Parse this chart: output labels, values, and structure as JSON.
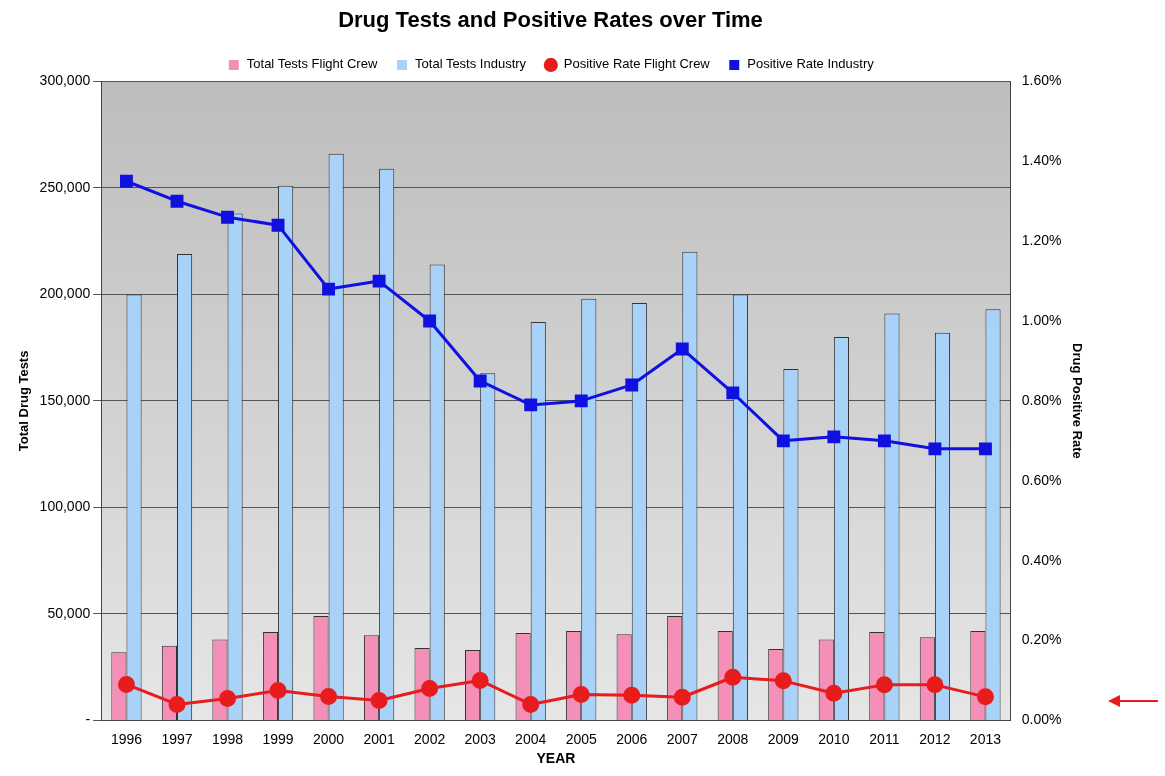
{
  "chart_data": {
    "type": "bar",
    "title": "Drug Tests and Positive Rates over Time",
    "xlabel": "YEAR",
    "ylabel": "Total Drug Tests",
    "y2label": "Drug Positive Rate",
    "categories": [
      "1996",
      "1997",
      "1998",
      "1999",
      "2000",
      "2001",
      "2002",
      "2003",
      "2004",
      "2005",
      "2006",
      "2007",
      "2008",
      "2009",
      "2010",
      "2011",
      "2012",
      "2013"
    ],
    "series": [
      {
        "name": "Total Tests Flight Crew",
        "color": "#f48fb8",
        "values": [
          32000,
          35000,
          38000,
          41500,
          49000,
          40000,
          34000,
          33000,
          41000,
          42000,
          40500,
          49000,
          42000,
          33500,
          38000,
          41500,
          39000,
          42000
        ]
      },
      {
        "name": "Total Tests Industry",
        "color": "#a8d2f8",
        "values": [
          200000,
          219000,
          238000,
          251000,
          266000,
          259000,
          214000,
          163000,
          187000,
          198000,
          196000,
          220000,
          200000,
          165000,
          180000,
          191000,
          182000,
          193000
        ]
      },
      {
        "name": "Positive Rate Flight Crew",
        "type": "line",
        "axis": "y2",
        "marker": "circle",
        "color": "#e81c1c",
        "values": [
          0.09,
          0.04,
          0.055,
          0.075,
          0.06,
          0.05,
          0.08,
          0.1,
          0.04,
          0.065,
          0.063,
          0.058,
          0.108,
          0.099,
          0.068,
          0.089,
          0.089,
          0.059
        ]
      },
      {
        "name": "Positive Rate Industry",
        "type": "line",
        "axis": "y2",
        "marker": "square",
        "color": "#1010e0",
        "values": [
          1.35,
          1.3,
          1.26,
          1.24,
          1.08,
          1.1,
          1.0,
          0.85,
          0.79,
          0.8,
          0.84,
          0.93,
          0.82,
          0.7,
          0.71,
          0.7,
          0.68,
          0.68
        ]
      }
    ],
    "ylim": [
      0,
      300000
    ],
    "yticks": [
      {
        "value": 0,
        "label": "-"
      },
      {
        "value": 50000,
        "label": "50,000"
      },
      {
        "value": 100000,
        "label": "100,000"
      },
      {
        "value": 150000,
        "label": "150,000"
      },
      {
        "value": 200000,
        "label": "200,000"
      },
      {
        "value": 250000,
        "label": "250,000"
      },
      {
        "value": 300000,
        "label": "300,000"
      }
    ],
    "y2lim": [
      0,
      1.6
    ],
    "y2ticks": [
      {
        "value": 0,
        "label": "0.00%"
      },
      {
        "value": 0.2,
        "label": "0.20%"
      },
      {
        "value": 0.4,
        "label": "0.40%"
      },
      {
        "value": 0.6,
        "label": "0.60%"
      },
      {
        "value": 0.8,
        "label": "0.80%"
      },
      {
        "value": 1.0,
        "label": "1.00%"
      },
      {
        "value": 1.2,
        "label": "1.20%"
      },
      {
        "value": 1.4,
        "label": "1.40%"
      },
      {
        "value": 1.6,
        "label": "1.60%"
      }
    ],
    "grid": "y",
    "legend": "top"
  }
}
